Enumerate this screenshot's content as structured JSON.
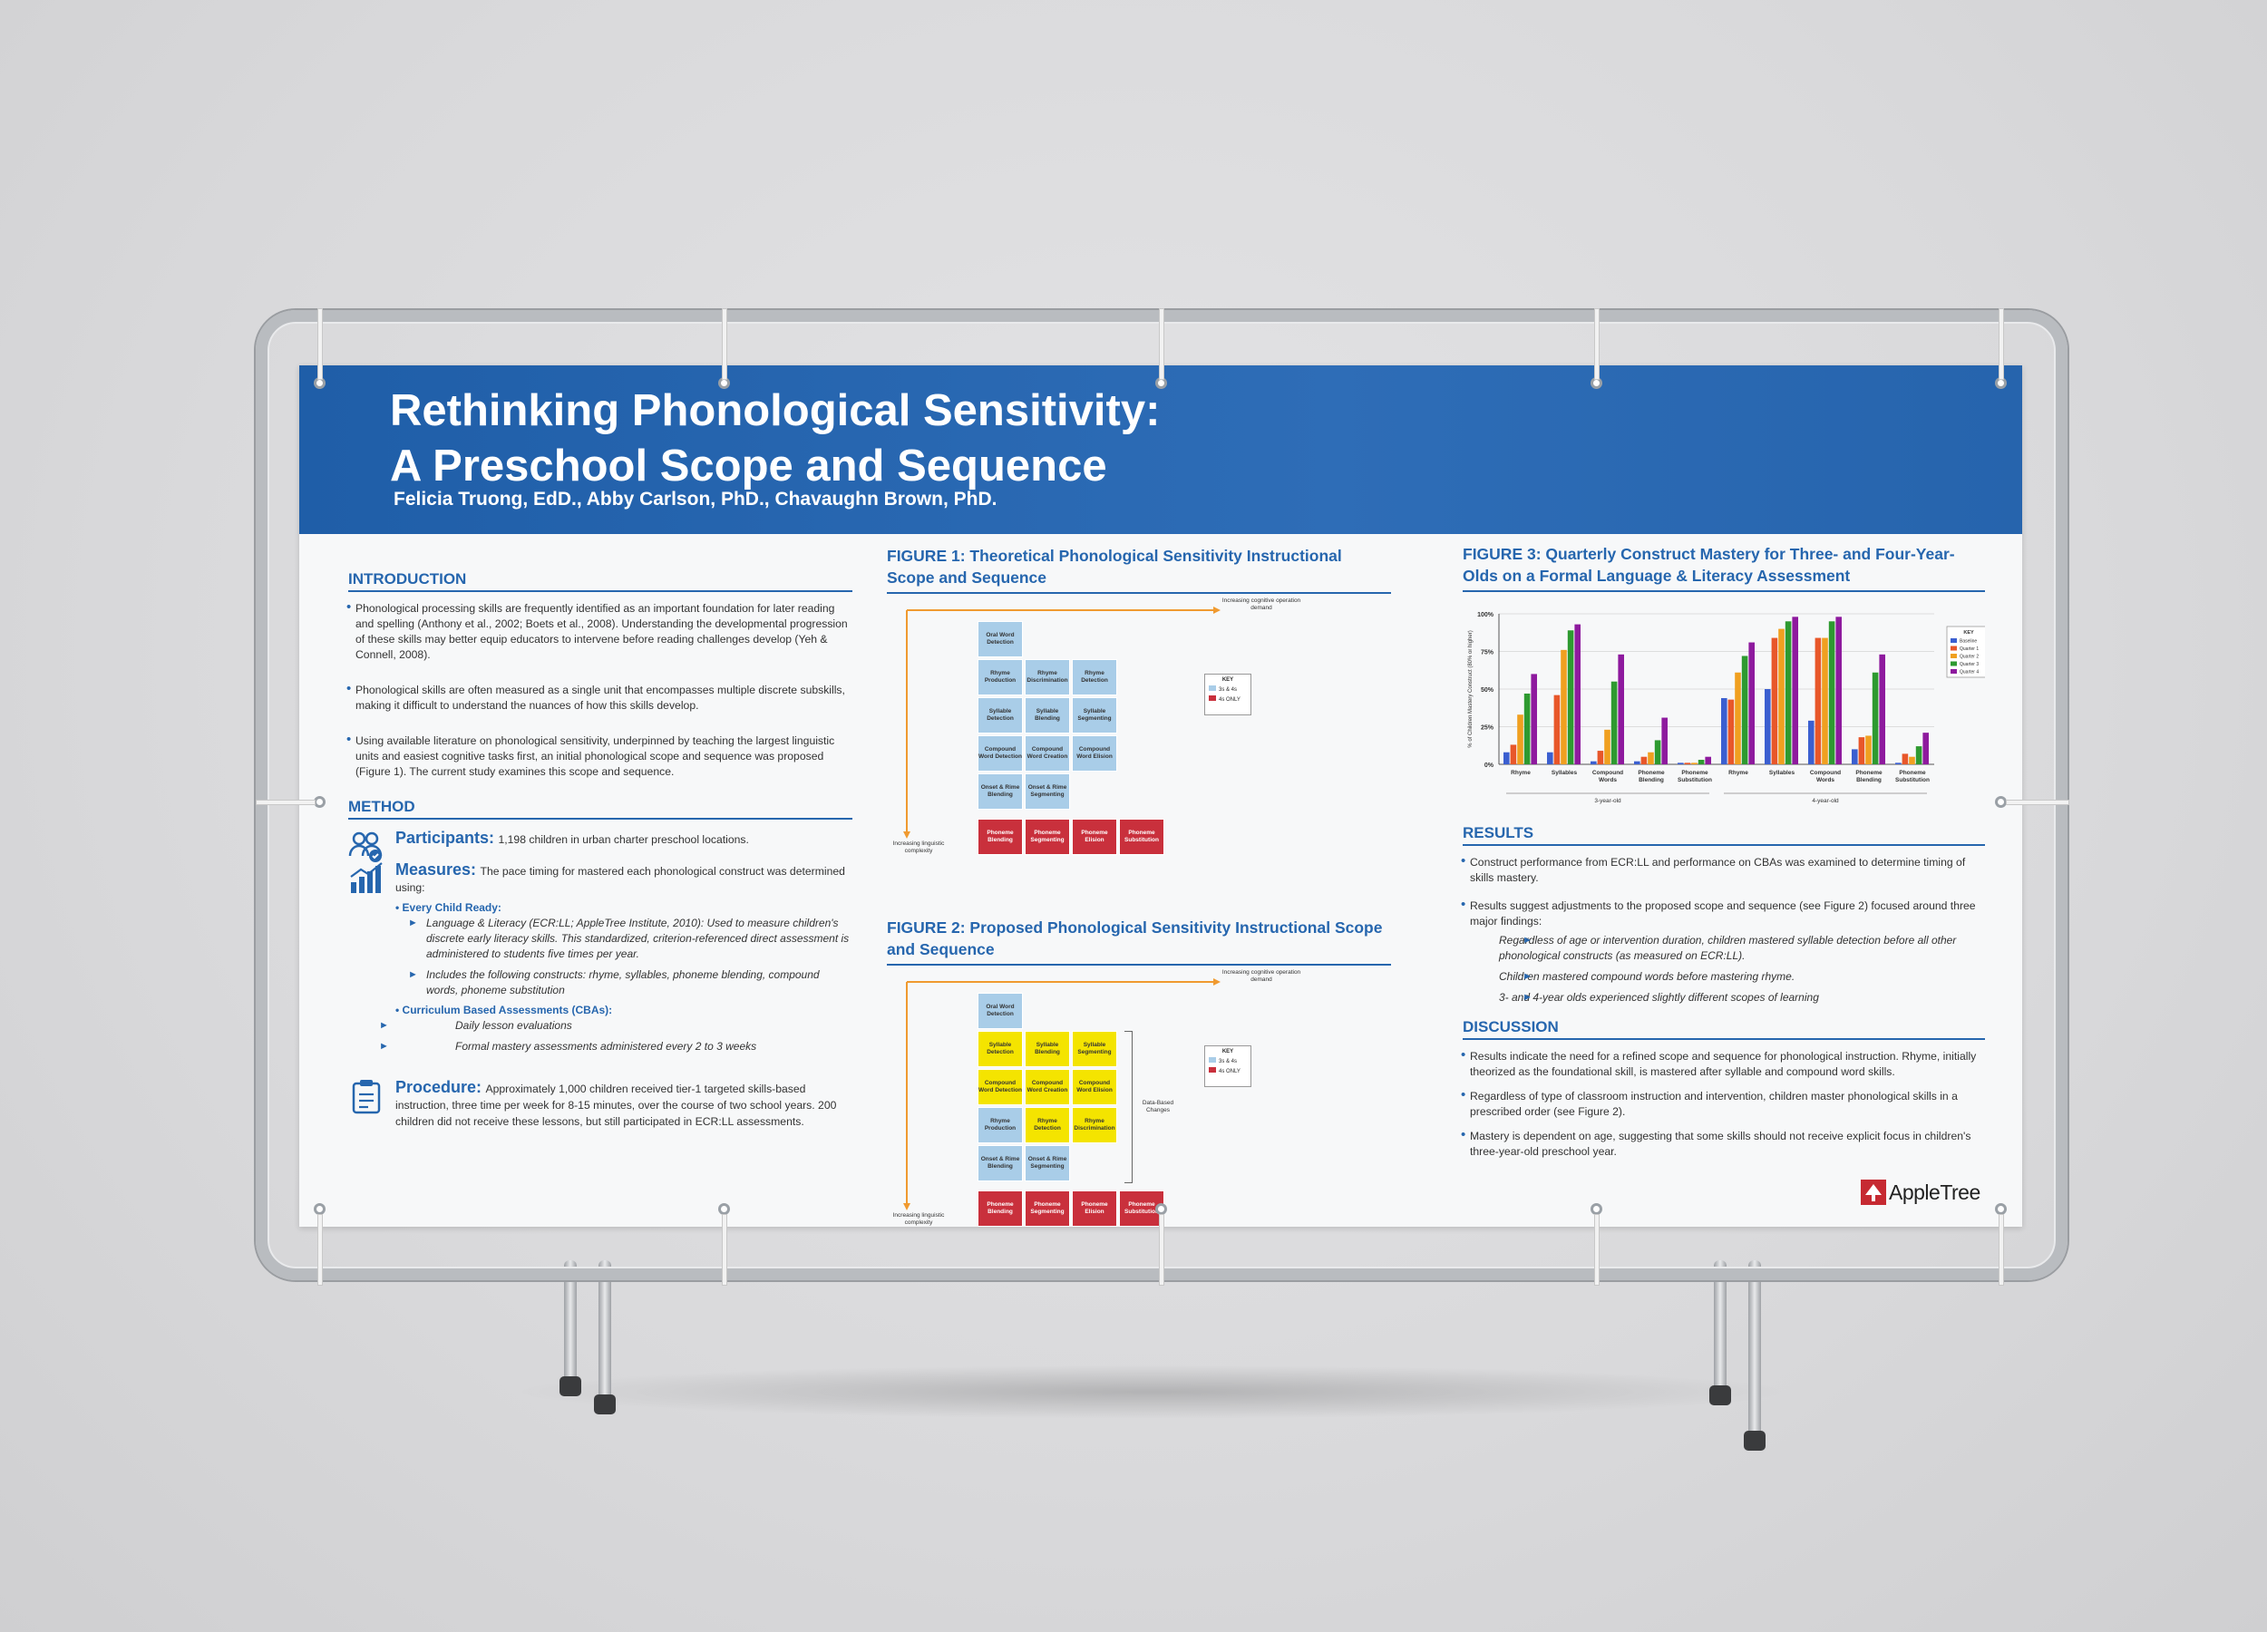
{
  "poster": {
    "title_line1": "Rethinking Phonological Sensitivity:",
    "title_line2": "A Preschool Scope and Sequence",
    "authors": "Felicia Truong, EdD., Abby Carlson, PhD., Chavaughn Brown, PhD."
  },
  "introduction": {
    "heading": "INTRODUCTION",
    "paragraphs": [
      "Phonological processing skills are frequently identified as an important foundation for later reading and spelling (Anthony et al., 2002; Boets et al., 2008). Understanding the developmental progression of these skills may better equip educators to intervene before reading challenges develop (Yeh & Connell, 2008).",
      "Phonological skills are often measured as a single unit that encompasses multiple discrete subskills, making it difficult to understand the nuances of how this skills develop.",
      "Using available literature on phonological sensitivity, underpinned by teaching the largest linguistic units and easiest cognitive tasks first, an initial phonological scope and sequence was proposed (Figure 1). The current study examines this scope and sequence."
    ]
  },
  "method": {
    "heading": "METHOD",
    "participants_label": "Participants:",
    "participants_text": "1,198 children in urban charter preschool locations.",
    "measures_label": "Measures:",
    "measures_text": "The pace timing for mastered each phonological construct was determined using:",
    "ecr_label": "Every Child Ready:",
    "ecr_items": [
      "Language & Literacy (ECR:LL; AppleTree Institute, 2010): Used to measure children's discrete early literacy skills. This standardized, criterion-referenced direct assessment is administered to students five times per year.",
      "Includes the following constructs: rhyme, syllables, phoneme blending, compound words, phoneme substitution"
    ],
    "cba_label": "Curriculum Based Assessments (CBAs):",
    "cba_items": [
      "Daily lesson evaluations",
      "Formal mastery assessments administered every 2 to 3 weeks"
    ],
    "procedure_label": "Procedure:",
    "procedure_text": "Approximately 1,000 children received tier-1 targeted skills-based instruction, three time per week for 8-15 minutes, over the course of two school years. 200 children did not receive these lessons, but still participated in ECR:LL assessments."
  },
  "figure1": {
    "title": "FIGURE 1: Theoretical Phonological Sensitivity Instructional Scope and Sequence",
    "top_arrow_label": "Increasing cognitive operation demand",
    "left_arrow_label": "Increasing linguistic complexity",
    "key_title": "KEY",
    "key_items": [
      "3s & 4s",
      "4s ONLY"
    ],
    "cells": [
      "Oral Word Detection",
      "Rhyme Production",
      "Rhyme Discrimination",
      "Rhyme Detection",
      "Syllable Detection",
      "Syllable Blending",
      "Syllable Segmenting",
      "Compound Word Detection",
      "Compound Word Creation",
      "Compound Word Elision",
      "Onset & Rime Blending",
      "Onset & Rime Segmenting",
      "Phoneme Blending",
      "Phoneme Segmenting",
      "Phoneme Elision",
      "Phoneme Substitution"
    ]
  },
  "figure2": {
    "title": "FIGURE 2: Proposed Phonological Sensitivity Instructional Scope and Sequence",
    "top_arrow_label": "Increasing cognitive operation demand",
    "left_arrow_label": "Increasing linguistic complexity",
    "side_label": "Data-Based Changes",
    "key_title": "KEY",
    "key_items": [
      "3s & 4s",
      "4s ONLY"
    ],
    "cells": [
      "Oral Word Detection",
      "Syllable Detection",
      "Syllable Blending",
      "Syllable Segmenting",
      "Compound Word Detection",
      "Compound Word Creation",
      "Compound Word Elision",
      "Rhyme Production",
      "Rhyme Detection",
      "Rhyme Discrimination",
      "Onset & Rime Blending",
      "Onset & Rime Segmenting",
      "Phoneme Blending",
      "Phoneme Segmenting",
      "Phoneme Elision",
      "Phoneme Substitution"
    ]
  },
  "chart_data": {
    "type": "bar",
    "title": "FIGURE 3: Quarterly Construct Mastery for Three- and Four-Year-Olds on a Formal Language & Literacy Assessment",
    "ylabel": "% of Children Mastery Construct (80% or higher)",
    "ylim": [
      0,
      100
    ],
    "yticks": [
      "0%",
      "25%",
      "50%",
      "75%",
      "100%"
    ],
    "categories": [
      "Rhyme",
      "Syllables",
      "Compound Words",
      "Phoneme Blending",
      "Phoneme Substitution",
      "Rhyme",
      "Syllables",
      "Compound Words",
      "Phoneme Blending",
      "Phoneme Substitution"
    ],
    "groups": [
      "3-year-old",
      "4-year-old"
    ],
    "legend_title": "KEY",
    "legend_position": "top-right",
    "series": [
      {
        "name": "Baseline",
        "color": "#3b5fd0",
        "values": [
          8,
          8,
          2,
          2,
          1,
          44,
          50,
          29,
          10,
          1
        ]
      },
      {
        "name": "Quarter 1",
        "color": "#e8572a",
        "values": [
          13,
          46,
          9,
          5,
          1,
          43,
          84,
          84,
          18,
          7
        ]
      },
      {
        "name": "Quarter 2",
        "color": "#f0a020",
        "values": [
          33,
          76,
          23,
          8,
          1,
          61,
          90,
          84,
          19,
          5
        ]
      },
      {
        "name": "Quarter 3",
        "color": "#2e9a30",
        "values": [
          47,
          89,
          55,
          16,
          3,
          72,
          95,
          95,
          61,
          12
        ]
      },
      {
        "name": "Quarter 4",
        "color": "#8e1a9e",
        "values": [
          60,
          93,
          73,
          31,
          5,
          81,
          98,
          98,
          73,
          21
        ]
      }
    ]
  },
  "results": {
    "heading": "RESULTS",
    "bullets": [
      "Construct performance from ECR:LL and performance on CBAs was examined to determine timing of skills mastery.",
      "Results suggest adjustments to the proposed scope and sequence (see Figure 2) focused around three major findings:"
    ],
    "findings": [
      "Regardless of age or intervention duration, children mastered syllable detection before all other phonological constructs (as measured on ECR:LL).",
      "Children mastered compound words before mastering rhyme.",
      "3- and 4-year olds experienced slightly different scopes of learning"
    ]
  },
  "discussion": {
    "heading": "DISCUSSION",
    "bullets": [
      "Results indicate the need for a refined scope and sequence for phonological instruction. Rhyme, initially theorized as the foundational skill, is mastered after syllable and compound word skills.",
      "Regardless of type of classroom instruction and intervention, children master phonological skills in a prescribed order (see Figure 2).",
      "Mastery is dependent on age, suggesting that some skills should not receive explicit focus in children's three-year-old preschool year."
    ]
  },
  "logo": {
    "text": "AppleTree",
    "color": "#c62a32"
  },
  "colors": {
    "header": "#2666ae",
    "accent": "#2666ae",
    "blue_cell": "#a9cde8",
    "yellow_cell": "#f4e400",
    "red_cell": "#c9303c"
  }
}
